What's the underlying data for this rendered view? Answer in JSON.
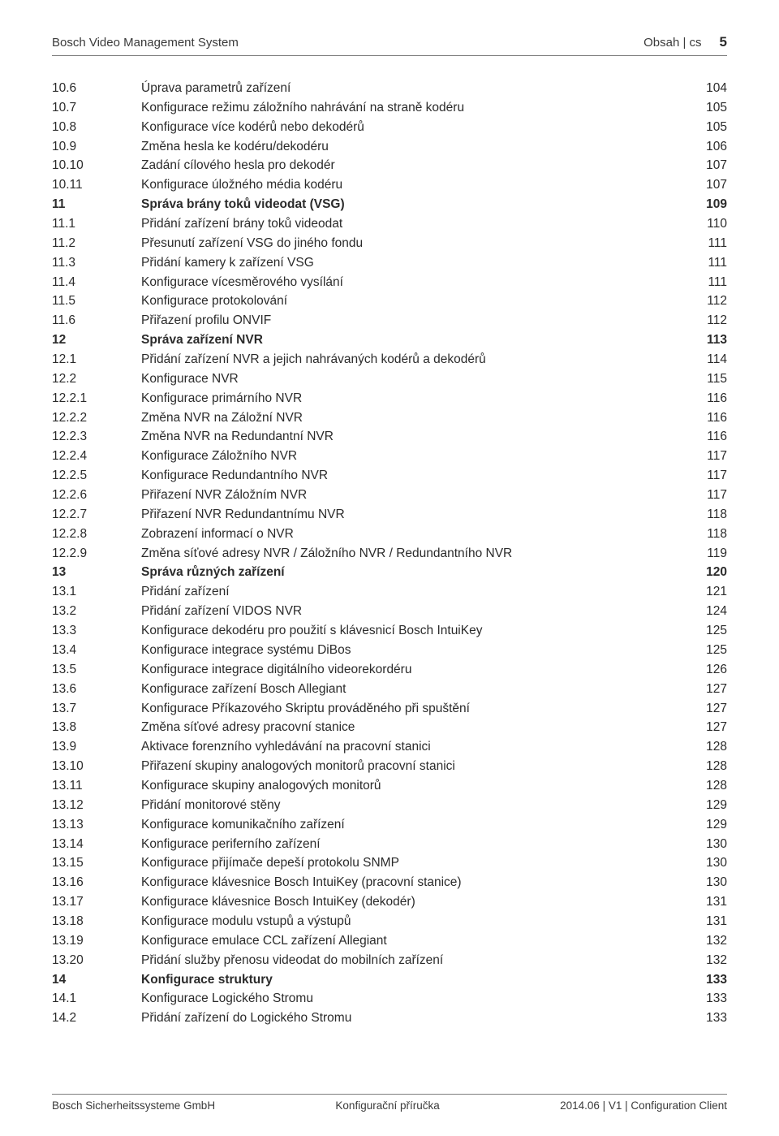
{
  "header": {
    "left": "Bosch Video Management System",
    "right_label": "Obsah | cs",
    "page_number": "5"
  },
  "footer": {
    "left": "Bosch Sicherheitssysteme GmbH",
    "center": "Konfigurační příručka",
    "right": "2014.06 | V1 | Configuration Client"
  },
  "toc": [
    {
      "num": "10.6",
      "title": "Úprava parametrů zařízení",
      "page": "104",
      "bold": false
    },
    {
      "num": "10.7",
      "title": "Konfigurace režimu záložního nahrávání na straně kodéru",
      "page": "105",
      "bold": false
    },
    {
      "num": "10.8",
      "title": "Konfigurace více kodérů nebo dekodérů",
      "page": "105",
      "bold": false
    },
    {
      "num": "10.9",
      "title": "Změna hesla ke kodéru/dekodéru",
      "page": "106",
      "bold": false
    },
    {
      "num": "10.10",
      "title": "Zadání cílového hesla pro dekodér",
      "page": "107",
      "bold": false
    },
    {
      "num": "10.11",
      "title": "Konfigurace úložného média kodéru",
      "page": "107",
      "bold": false
    },
    {
      "num": "11",
      "title": "Správa brány toků videodat (VSG)",
      "page": "109",
      "bold": true
    },
    {
      "num": "11.1",
      "title": "Přidání zařízení brány toků videodat",
      "page": "110",
      "bold": false
    },
    {
      "num": "11.2",
      "title": "Přesunutí zařízení VSG do jiného fondu",
      "page": "111",
      "bold": false
    },
    {
      "num": "11.3",
      "title": "Přidání kamery k zařízení VSG",
      "page": "111",
      "bold": false
    },
    {
      "num": "11.4",
      "title": "Konfigurace vícesměrového vysílání",
      "page": "111",
      "bold": false
    },
    {
      "num": "11.5",
      "title": "Konfigurace protokolování",
      "page": "112",
      "bold": false
    },
    {
      "num": "11.6",
      "title": "Přiřazení profilu ONVIF",
      "page": "112",
      "bold": false
    },
    {
      "num": "12",
      "title": "Správa zařízení NVR",
      "page": "113",
      "bold": true
    },
    {
      "num": "12.1",
      "title": "Přidání zařízení NVR a jejich nahrávaných kodérů a dekodérů",
      "page": "114",
      "bold": false
    },
    {
      "num": "12.2",
      "title": "Konfigurace NVR",
      "page": "115",
      "bold": false
    },
    {
      "num": "12.2.1",
      "title": "Konfigurace primárního NVR",
      "page": "116",
      "bold": false
    },
    {
      "num": "12.2.2",
      "title": "Změna NVR na Záložní NVR",
      "page": "116",
      "bold": false
    },
    {
      "num": "12.2.3",
      "title": "Změna NVR na Redundantní NVR",
      "page": "116",
      "bold": false
    },
    {
      "num": "12.2.4",
      "title": "Konfigurace Záložního NVR",
      "page": "117",
      "bold": false
    },
    {
      "num": "12.2.5",
      "title": "Konfigurace Redundantního NVR",
      "page": "117",
      "bold": false
    },
    {
      "num": "12.2.6",
      "title": "Přiřazení NVR Záložním NVR",
      "page": "117",
      "bold": false
    },
    {
      "num": "12.2.7",
      "title": "Přiřazení NVR Redundantnímu NVR",
      "page": "118",
      "bold": false
    },
    {
      "num": "12.2.8",
      "title": "Zobrazení informací o NVR",
      "page": "118",
      "bold": false
    },
    {
      "num": "12.2.9",
      "title": "Změna síťové adresy NVR / Záložního NVR / Redundantního NVR",
      "page": "119",
      "bold": false
    },
    {
      "num": "13",
      "title": "Správa různých zařízení",
      "page": "120",
      "bold": true
    },
    {
      "num": "13.1",
      "title": "Přidání zařízení",
      "page": "121",
      "bold": false
    },
    {
      "num": "13.2",
      "title": "Přidání zařízení VIDOS NVR",
      "page": "124",
      "bold": false
    },
    {
      "num": "13.3",
      "title": "Konfigurace dekodéru pro použití s klávesnicí Bosch IntuiKey",
      "page": "125",
      "bold": false
    },
    {
      "num": "13.4",
      "title": "Konfigurace integrace systému DiBos",
      "page": "125",
      "bold": false
    },
    {
      "num": "13.5",
      "title": "Konfigurace integrace digitálního videorekordéru",
      "page": "126",
      "bold": false
    },
    {
      "num": "13.6",
      "title": "Konfigurace zařízení Bosch Allegiant",
      "page": "127",
      "bold": false
    },
    {
      "num": "13.7",
      "title": "Konfigurace Příkazového Skriptu prováděného při spuštění",
      "page": "127",
      "bold": false
    },
    {
      "num": "13.8",
      "title": "Změna síťové adresy pracovní stanice",
      "page": "127",
      "bold": false
    },
    {
      "num": "13.9",
      "title": "Aktivace forenzního vyhledávání na pracovní stanici",
      "page": "128",
      "bold": false
    },
    {
      "num": "13.10",
      "title": "Přiřazení skupiny analogových monitorů pracovní stanici",
      "page": "128",
      "bold": false
    },
    {
      "num": "13.11",
      "title": "Konfigurace skupiny analogových monitorů",
      "page": "128",
      "bold": false
    },
    {
      "num": "13.12",
      "title": "Přidání monitorové stěny",
      "page": "129",
      "bold": false
    },
    {
      "num": "13.13",
      "title": "Konfigurace komunikačního zařízení",
      "page": "129",
      "bold": false
    },
    {
      "num": "13.14",
      "title": "Konfigurace periferního zařízení",
      "page": "130",
      "bold": false
    },
    {
      "num": "13.15",
      "title": "Konfigurace přijímače depeší protokolu SNMP",
      "page": "130",
      "bold": false
    },
    {
      "num": "13.16",
      "title": "Konfigurace klávesnice Bosch IntuiKey (pracovní stanice)",
      "page": "130",
      "bold": false
    },
    {
      "num": "13.17",
      "title": "Konfigurace klávesnice Bosch IntuiKey (dekodér)",
      "page": "131",
      "bold": false
    },
    {
      "num": "13.18",
      "title": "Konfigurace modulu vstupů a výstupů",
      "page": "131",
      "bold": false
    },
    {
      "num": "13.19",
      "title": "Konfigurace emulace CCL zařízení Allegiant",
      "page": "132",
      "bold": false
    },
    {
      "num": "13.20",
      "title": "Přidání služby přenosu videodat do mobilních zařízení",
      "page": "132",
      "bold": false
    },
    {
      "num": "14",
      "title": "Konfigurace struktury",
      "page": "133",
      "bold": true
    },
    {
      "num": "14.1",
      "title": "Konfigurace Logického Stromu",
      "page": "133",
      "bold": false
    },
    {
      "num": "14.2",
      "title": "Přidání zařízení do Logického Stromu",
      "page": "133",
      "bold": false
    }
  ]
}
